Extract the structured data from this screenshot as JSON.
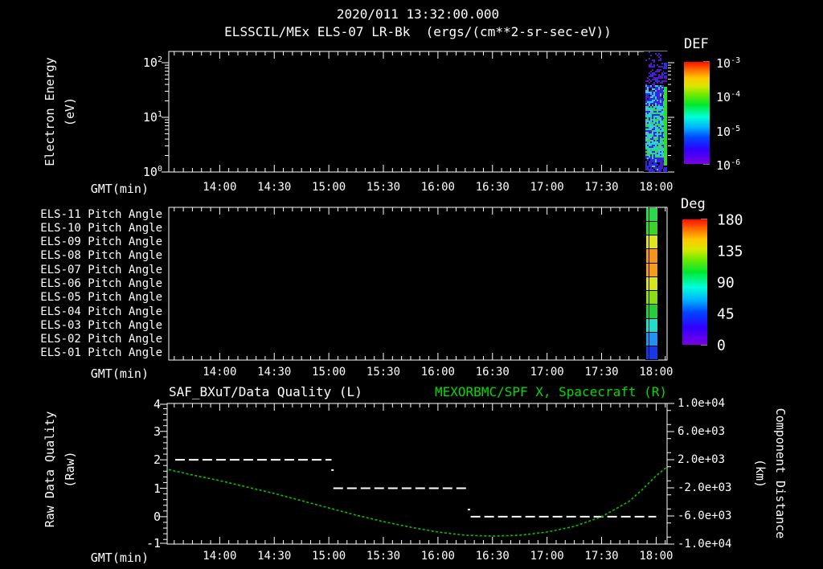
{
  "header": {
    "timestamp_title": "2020/011 13:32:00.000",
    "main_title": "ELSSCIL/MEx ELS-07 LR-Bk  (ergs/(cm**2-sr-sec-eV))"
  },
  "x_axis": {
    "label": "GMT(min)",
    "tick_labels": [
      "14:00",
      "14:30",
      "15:00",
      "15:30",
      "16:00",
      "16:30",
      "17:00",
      "17:30",
      "18:00"
    ],
    "start_time": "13:32",
    "end_time": "18:06",
    "total_minutes": 274,
    "first_major_minute": 28,
    "major_step_minutes": 30,
    "minor_step_minutes": 5
  },
  "chart_data": [
    {
      "type": "heatmap",
      "name": "electron-energy-spectrogram",
      "ylabel_lines": [
        "Electron Energy",
        "(eV)"
      ],
      "y_scale": "log",
      "y_tick_labels": [
        "10^2",
        "10^1",
        "10^0"
      ],
      "y_range_ev": [
        1,
        170
      ],
      "colorbar": {
        "title": "DEF",
        "units": "ergs/(cm**2-sr-sec-eV)",
        "tick_labels": [
          "10^-3",
          "10^-4",
          "10^-5",
          "10^-6"
        ],
        "range": [
          1e-06,
          0.001
        ]
      },
      "data_band": {
        "time_start": "17:54",
        "time_end": "18:06",
        "description": "speckled electron flux burst at end of interval: sparse purple/blue at high energy, cyan-green at mid-low energies, bright green stripe at right edge, blue-purple speckle at lowest energies",
        "palette": {
          "black": "#000000",
          "purple": "#5a14cc",
          "blue": "#2430e8",
          "cyan": "#38c8e8",
          "teal": "#20d8a0",
          "green": "#38d838"
        },
        "stripe_color": "#28e028",
        "regions": [
          {
            "f0": 0.0,
            "f1": 0.1,
            "weights": {
              "black": 0.85,
              "purple": 0.12,
              "blue": 0.03
            }
          },
          {
            "f0": 0.1,
            "f1": 0.28,
            "weights": {
              "black": 0.55,
              "purple": 0.3,
              "blue": 0.15
            }
          },
          {
            "f0": 0.28,
            "f1": 0.45,
            "weights": {
              "black": 0.1,
              "purple": 0.22,
              "blue": 0.38,
              "cyan": 0.3
            }
          },
          {
            "f0": 0.45,
            "f1": 0.62,
            "weights": {
              "cyan": 0.42,
              "green": 0.25,
              "blue": 0.18,
              "teal": 0.1,
              "purple": 0.05
            }
          },
          {
            "f0": 0.62,
            "f1": 0.88,
            "weights": {
              "cyan": 0.38,
              "green": 0.22,
              "teal": 0.15,
              "blue": 0.18,
              "purple": 0.07
            }
          },
          {
            "f0": 0.88,
            "f1": 1.0,
            "weights": {
              "black": 0.25,
              "blue": 0.35,
              "purple": 0.3,
              "cyan": 0.1
            }
          }
        ]
      }
    },
    {
      "type": "heatmap",
      "name": "pitch-angle-rows",
      "data_band_time": [
        "17:54",
        "18:06"
      ],
      "rows": [
        {
          "label": "ELS-11 Pitch Angle",
          "color": "#2cd84c",
          "approx_deg": 95
        },
        {
          "label": "ELS-10 Pitch Angle",
          "color": "#3cd42c",
          "approx_deg": 100
        },
        {
          "label": "ELS-09 Pitch Angle",
          "color": "#e0e41c",
          "approx_deg": 125
        },
        {
          "label": "ELS-08 Pitch Angle",
          "color": "#f49420",
          "approx_deg": 145
        },
        {
          "label": "ELS-07 Pitch Angle",
          "color": "#f49c20",
          "approx_deg": 143
        },
        {
          "label": "ELS-06 Pitch Angle",
          "color": "#d8e420",
          "approx_deg": 122
        },
        {
          "label": "ELS-05 Pitch Angle",
          "color": "#8cdc1c",
          "approx_deg": 110
        },
        {
          "label": "ELS-04 Pitch Angle",
          "color": "#28cc3c",
          "approx_deg": 95
        },
        {
          "label": "ELS-03 Pitch Angle",
          "color": "#24dcc8",
          "approx_deg": 62
        },
        {
          "label": "ELS-02 Pitch Angle",
          "color": "#2492f0",
          "approx_deg": 45
        },
        {
          "label": "ELS-01 Pitch Angle",
          "color": "#1838e8",
          "approx_deg": 22
        }
      ],
      "colorbar": {
        "title": "Deg",
        "tick_labels": [
          "180",
          "135",
          "90",
          "45",
          "0"
        ],
        "range": [
          0,
          180
        ]
      }
    },
    {
      "type": "line",
      "name": "quality-and-distance",
      "left_title": "SAF_BXuT/Data Quality (L)",
      "right_title": "MEXORBMC/SPF X, Spacecraft (R)",
      "right_title_color": "#00dc00",
      "left_axis": {
        "label_lines": [
          "Raw Data Quality",
          "(Raw)"
        ],
        "tick_labels": [
          "4",
          "3",
          "2",
          "1",
          "0",
          "-1"
        ],
        "range": [
          -1,
          4
        ]
      },
      "right_axis": {
        "label_lines": [
          "Component Distance",
          "(km)"
        ],
        "tick_labels": [
          "1.0e+04",
          "6.0e+03",
          "2.0e+03",
          "-2.0e+03",
          "-6.0e+03",
          "-1.0e+04"
        ],
        "range": [
          -10000,
          10000
        ]
      },
      "series": [
        {
          "name": "SAF_BXuT/Data Quality",
          "axis": "left",
          "style": "dashed",
          "color": "#ffffff",
          "segments": [
            {
              "t_start_min": 3.5,
              "t_end_min": 89.5,
              "value": 2
            },
            {
              "t_start_min": 90.5,
              "t_end_min": 164.5,
              "value": 1
            },
            {
              "t_start_min": 166.0,
              "t_end_min": 268.0,
              "value": 0
            }
          ],
          "isolated_points": [
            {
              "t_min": 89.8,
              "value": 1.64
            },
            {
              "t_min": 164.8,
              "value": 0.25
            }
          ]
        },
        {
          "name": "MEXORBMC/SPF X Spacecraft",
          "axis": "right",
          "style": "dotted",
          "color": "#00c400",
          "points_t_min": [
            0,
            13,
            28,
            43,
            58,
            73,
            88,
            103,
            118,
            133,
            148,
            163,
            178,
            193,
            208,
            223,
            238,
            253,
            260,
            268,
            274
          ],
          "points_km": [
            600,
            -170,
            -970,
            -1890,
            -2800,
            -3830,
            -4860,
            -5890,
            -6800,
            -7600,
            -8290,
            -8740,
            -8860,
            -8740,
            -8290,
            -7490,
            -6110,
            -3940,
            -2340,
            -290,
            970
          ]
        }
      ]
    }
  ]
}
